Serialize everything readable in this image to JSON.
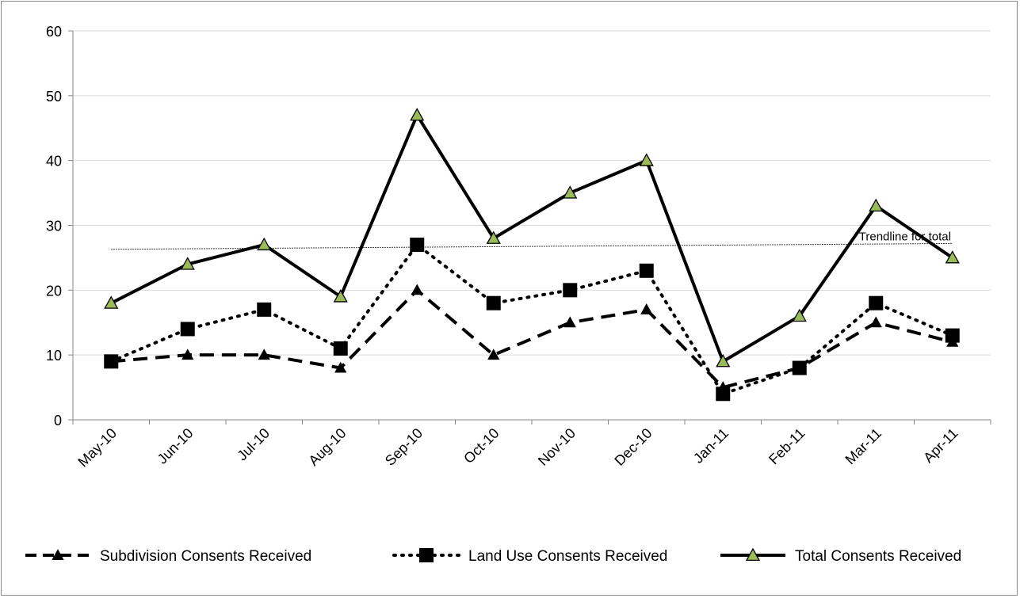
{
  "chart_data": {
    "type": "line",
    "title": "",
    "xlabel": "",
    "ylabel": "",
    "ylim": [
      0,
      60
    ],
    "yticks": [
      0,
      10,
      20,
      30,
      40,
      50,
      60
    ],
    "grid": true,
    "legend_position": "bottom",
    "categories": [
      "May-10",
      "Jun-10",
      "Jul-10",
      "Aug-10",
      "Sep-10",
      "Oct-10",
      "Nov-10",
      "Dec-10",
      "Jan-11",
      "Feb-11",
      "Mar-11",
      "Apr-11"
    ],
    "series": [
      {
        "name": "Subdivision Consents Received",
        "style": "dashed",
        "marker": "triangle",
        "color": "#000000",
        "values": [
          9,
          10,
          10,
          8,
          20,
          10,
          15,
          17,
          5,
          8,
          15,
          12
        ]
      },
      {
        "name": "Land Use Consents Received",
        "style": "dotted",
        "marker": "square",
        "color": "#000000",
        "values": [
          9,
          14,
          17,
          11,
          27,
          18,
          20,
          23,
          4,
          8,
          18,
          13
        ]
      },
      {
        "name": "Total Consents Received",
        "style": "solid",
        "marker": "triangle",
        "color": "#000000",
        "marker_fill": "#9bbb59",
        "values": [
          18,
          24,
          27,
          19,
          47,
          28,
          35,
          40,
          9,
          16,
          33,
          25
        ]
      }
    ],
    "trendline": {
      "label": "Trendline for total",
      "start": 26.3,
      "end": 27.2
    }
  }
}
